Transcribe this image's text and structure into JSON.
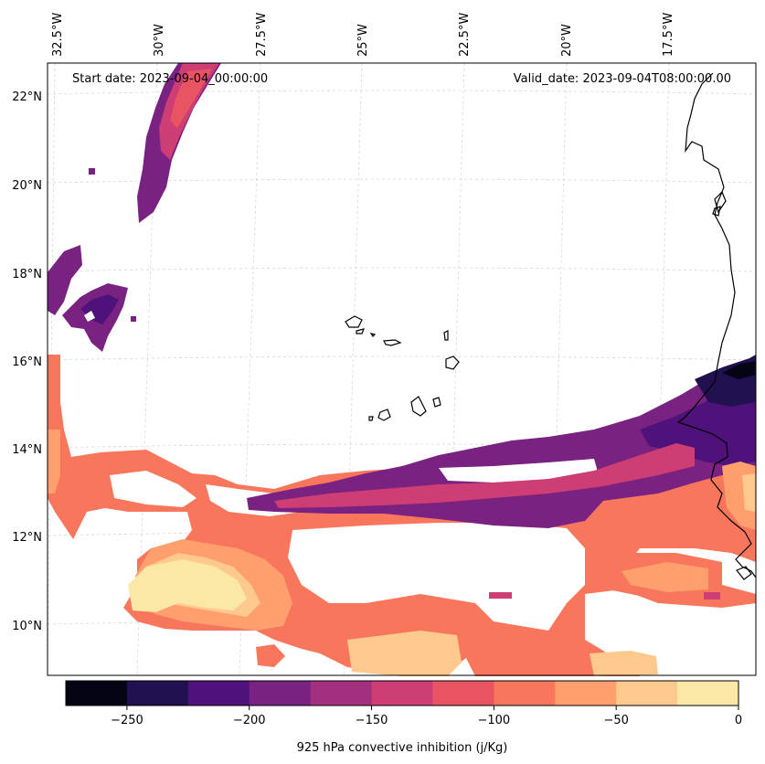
{
  "map": {
    "start_date_text": "Start date: 2023-09-04_00:00:00",
    "valid_date_text": "Valid_date: 2023-09-04T08:00:00.00",
    "longitude_labels": [
      "32.5°W",
      "30°W",
      "27.5°W",
      "25°W",
      "22.5°W",
      "20°W",
      "17.5°W"
    ],
    "latitude_labels": [
      "22°N",
      "20°N",
      "18°N",
      "16°N",
      "14°N",
      "12°N",
      "10°N"
    ],
    "coastline_color": "#000000",
    "gridline_color": "#cccccc"
  },
  "colorbar": {
    "label": "925 hPa convective inhibition (j/Kg)",
    "tick_labels": [
      "−250",
      "−200",
      "−150",
      "−100",
      "−50",
      "0"
    ],
    "levels": [
      -275,
      -250,
      -225,
      -200,
      -175,
      -150,
      -125,
      -100,
      -75,
      -50,
      -25,
      0
    ],
    "colors": [
      "#050415",
      "#221150",
      "#4f127b",
      "#7a2282",
      "#a3307e",
      "#ce3d73",
      "#e85462",
      "#f8765c",
      "#fe9f6d",
      "#fec98d",
      "#fce8a6"
    ]
  }
}
